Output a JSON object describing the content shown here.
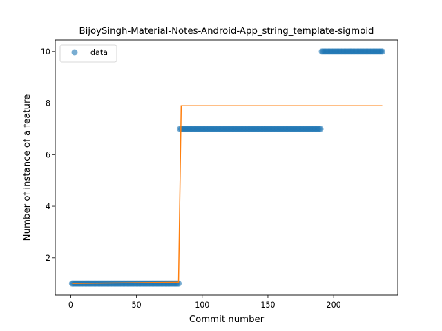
{
  "chart_data": {
    "type": "scatter",
    "title": "BijoySingh-Material-Notes-Android-App_string_template-sigmoid",
    "xlabel": "Commit number",
    "ylabel": "Number of instance of a feature",
    "xlim": [
      -11.8,
      248.8
    ],
    "ylim": [
      0.55,
      10.45
    ],
    "xticks": [
      0,
      50,
      100,
      150,
      200
    ],
    "yticks": [
      2,
      4,
      6,
      8,
      10
    ],
    "x_tick_labels": [
      "0",
      "50",
      "100",
      "150",
      "200"
    ],
    "y_tick_labels": [
      "2",
      "4",
      "6",
      "8",
      "10"
    ],
    "grid": false,
    "legend": {
      "position": "top-left",
      "entries": [
        "data"
      ]
    },
    "colors": {
      "data": "#1f77b4",
      "fit": "#ff7f0e"
    },
    "series": [
      {
        "name": "data",
        "kind": "scatter",
        "segments": [
          {
            "x_start": 1,
            "x_end": 82,
            "y": 1
          },
          {
            "x_start": 83,
            "x_end": 190,
            "y": 7
          },
          {
            "x_start": 191,
            "x_end": 237,
            "y": 10
          }
        ]
      },
      {
        "kind": "line",
        "points": [
          [
            1,
            1.0
          ],
          [
            82,
            1.05
          ],
          [
            84,
            7.9
          ],
          [
            237,
            7.9
          ]
        ]
      }
    ]
  }
}
